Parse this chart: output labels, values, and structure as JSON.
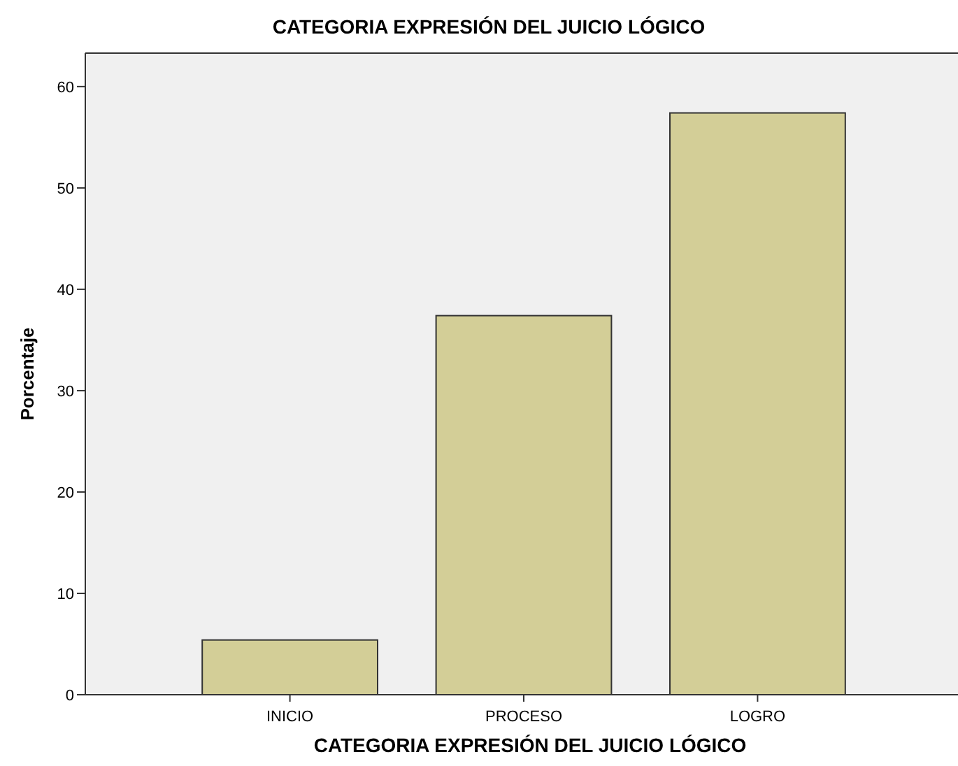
{
  "chart_data": {
    "type": "bar",
    "title": "CATEGORIA EXPRESIÓN DEL JUICIO LÓGICO",
    "xlabel": "CATEGORIA EXPRESIÓN DEL JUICIO LÓGICO",
    "ylabel": "Porcentaje",
    "categories": [
      "INICIO",
      "PROCESO",
      "LOGRO"
    ],
    "values": [
      5.4,
      37.4,
      57.4
    ],
    "color": "#d3ce97",
    "ylim": [
      0,
      63.3
    ],
    "yticks": [
      0,
      10,
      20,
      30,
      40,
      50,
      60
    ],
    "grid": false
  }
}
